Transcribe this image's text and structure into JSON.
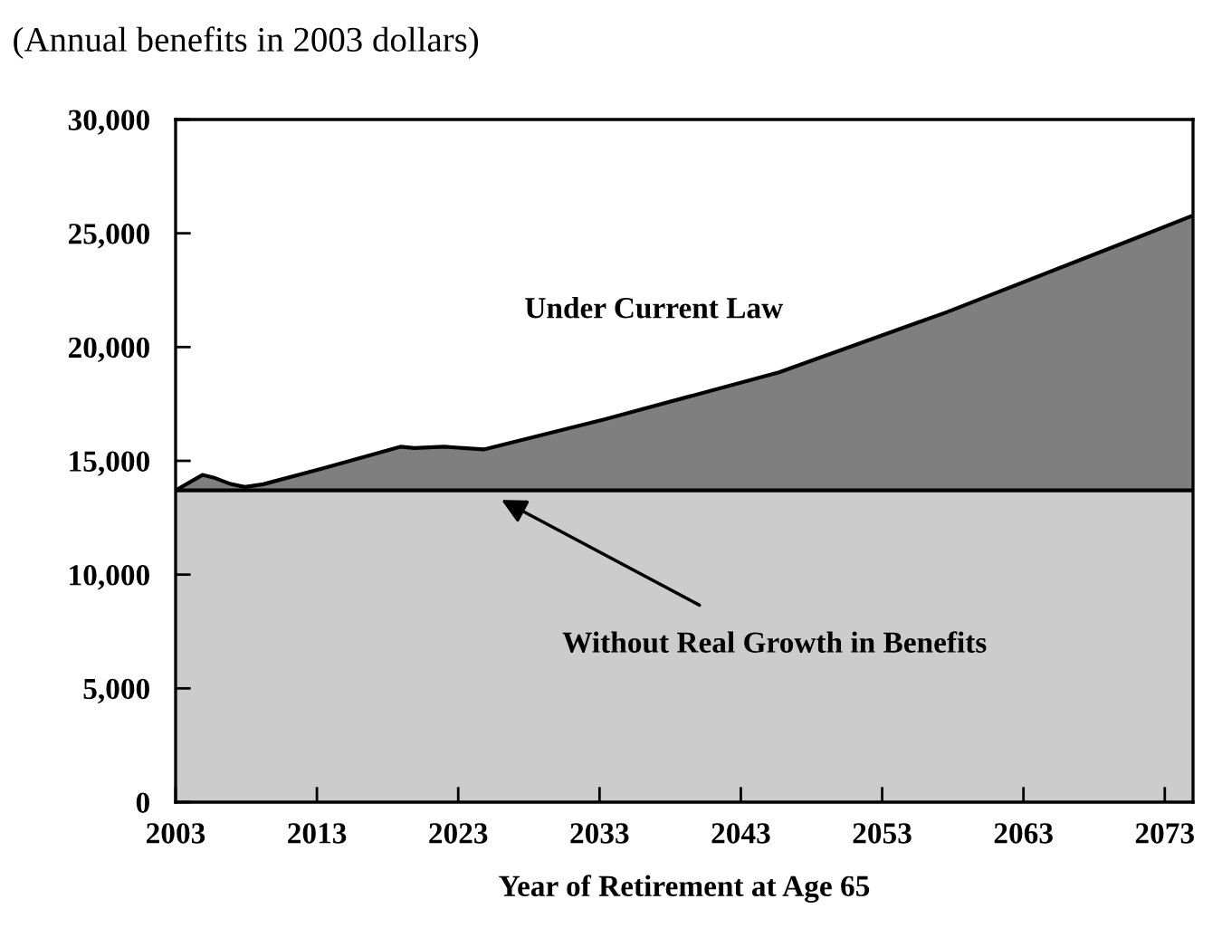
{
  "chart_data": {
    "type": "area",
    "subtitle": "(Annual benefits in 2003 dollars)",
    "xlabel": "Year of Retirement at Age 65",
    "xlim": [
      2003,
      2075
    ],
    "xticks": [
      2003,
      2013,
      2023,
      2033,
      2043,
      2053,
      2063,
      2073
    ],
    "ylim": [
      0,
      30000
    ],
    "yticks": [
      {
        "value": 0,
        "label": "0"
      },
      {
        "value": 5000,
        "label": "5,000"
      },
      {
        "value": 10000,
        "label": "10,000"
      },
      {
        "value": 15000,
        "label": "15,000"
      },
      {
        "value": 20000,
        "label": "20,000"
      },
      {
        "value": 25000,
        "label": "25,000"
      },
      {
        "value": 30000,
        "label": "30,000"
      }
    ],
    "x": [
      2003,
      2004.9,
      2005.8,
      2006.8,
      2007.9,
      2009.2,
      2013.5,
      2018.9,
      2019.9,
      2022,
      2024.8,
      2033.4,
      2045.7,
      2057.6,
      2068.5,
      2075
    ],
    "series": [
      {
        "name": "Without Real Growth in Benefits",
        "color": "#cccccc",
        "values": [
          13700,
          13700,
          13700,
          13700,
          13700,
          13700,
          13700,
          13700,
          13700,
          13700,
          13700,
          13700,
          13700,
          13700,
          13700,
          13700
        ]
      },
      {
        "name": "Under Current Law",
        "color": "#7f7f7f",
        "values": [
          13700,
          14380,
          14240,
          14000,
          13850,
          13970,
          14680,
          15620,
          15560,
          15620,
          15500,
          16830,
          18890,
          21540,
          24190,
          25780
        ]
      }
    ],
    "grid": false,
    "legend": false
  }
}
